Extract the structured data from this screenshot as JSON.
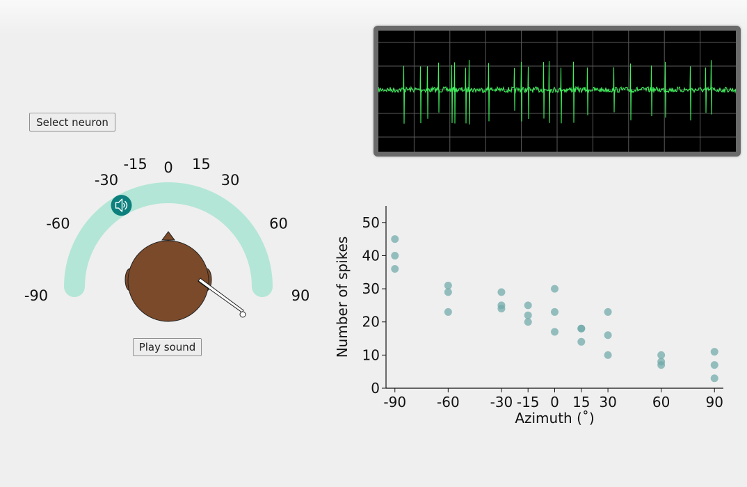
{
  "controls": {
    "select_neuron_label": "Select neuron",
    "play_sound_label": "Play sound"
  },
  "dial": {
    "tick_labels": [
      "-90",
      "-60",
      "-30",
      "-15",
      "0",
      "15",
      "30",
      "60",
      "90"
    ],
    "speaker_azimuth": -30,
    "speaker_icon": "speaker-volume-icon",
    "colors": {
      "arc": "#b3e6d6",
      "speaker": "#0d7f7c",
      "head": "#7b4a2a"
    }
  },
  "oscilloscope": {
    "trace_color": "#3ef05a",
    "background": "#000000"
  },
  "chart_data": {
    "type": "scatter",
    "xlabel": "Azimuth (˚)",
    "ylabel": "Number of spikes",
    "xticks": [
      -90,
      -60,
      -30,
      -15,
      0,
      15,
      30,
      60,
      90
    ],
    "yticks": [
      0,
      10,
      20,
      30,
      40,
      50
    ],
    "xlim": [
      -95,
      95
    ],
    "ylim": [
      0,
      55
    ],
    "points": [
      [
        -90,
        45
      ],
      [
        -90,
        40
      ],
      [
        -90,
        36
      ],
      [
        -60,
        31
      ],
      [
        -60,
        29
      ],
      [
        -60,
        23
      ],
      [
        -30,
        29
      ],
      [
        -30,
        25
      ],
      [
        -30,
        24
      ],
      [
        -15,
        25
      ],
      [
        -15,
        22
      ],
      [
        -15,
        20
      ],
      [
        0,
        30
      ],
      [
        0,
        23
      ],
      [
        0,
        17
      ],
      [
        15,
        18
      ],
      [
        15,
        18
      ],
      [
        15,
        14
      ],
      [
        30,
        23
      ],
      [
        30,
        16
      ],
      [
        30,
        10
      ],
      [
        60,
        10
      ],
      [
        60,
        8
      ],
      [
        60,
        7
      ],
      [
        90,
        11
      ],
      [
        90,
        7
      ],
      [
        90,
        3
      ]
    ],
    "marker_color": "#6fa9a9"
  }
}
